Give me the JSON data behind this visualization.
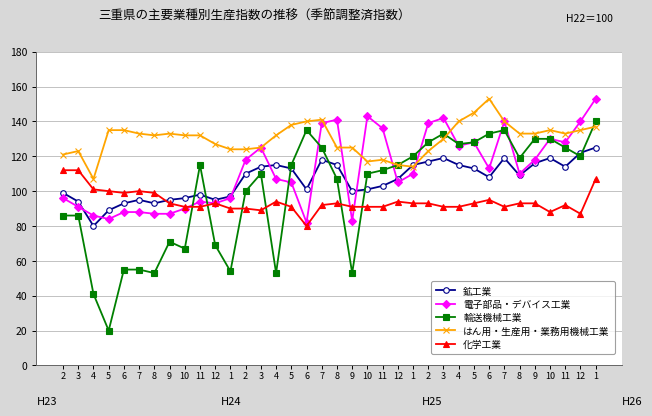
{
  "title": "三重県の主要業種別生産指数の推移（季節調整済指数）",
  "subtitle": "H22＝100",
  "xlabels": [
    "2",
    "3",
    "4",
    "5",
    "6",
    "7",
    "8",
    "9",
    "10",
    "11",
    "12",
    "1",
    "2",
    "3",
    "4",
    "5",
    "6",
    "7",
    "8",
    "9",
    "10",
    "11",
    "12",
    "1",
    "2",
    "3",
    "4",
    "5",
    "6",
    "7",
    "8",
    "9",
    "10",
    "11",
    "12",
    "1"
  ],
  "period_labels": [
    [
      "H23",
      0
    ],
    [
      "H24",
      11
    ],
    [
      "H25",
      23
    ],
    [
      "H26",
      35
    ]
  ],
  "ylim": [
    0,
    180
  ],
  "yticks": [
    0,
    20,
    40,
    60,
    80,
    100,
    120,
    140,
    160,
    180
  ],
  "bg_color": "#D8D8D8",
  "plot_bg": "white",
  "series": [
    {
      "name": "鉱工業",
      "color": "#00008B",
      "marker": "o",
      "mfc": "white",
      "mec": "#00008B",
      "ms": 4,
      "lw": 1.3,
      "values": [
        99,
        94,
        80,
        89,
        93,
        95,
        93,
        95,
        96,
        98,
        95,
        97,
        110,
        114,
        115,
        113,
        101,
        118,
        115,
        100,
        101,
        103,
        107,
        115,
        117,
        119,
        115,
        113,
        108,
        119,
        109,
        116,
        119,
        114,
        122,
        125
      ]
    },
    {
      "name": "電子部品・デバイス工業",
      "color": "#FF00FF",
      "marker": "D",
      "mfc": "#FF00FF",
      "mec": "#FF00FF",
      "ms": 4,
      "lw": 1.3,
      "values": [
        96,
        91,
        86,
        84,
        88,
        88,
        87,
        87,
        90,
        94,
        93,
        96,
        118,
        125,
        107,
        105,
        82,
        139,
        141,
        83,
        143,
        136,
        105,
        110,
        139,
        142,
        126,
        128,
        113,
        140,
        110,
        118,
        130,
        128,
        140,
        153
      ]
    },
    {
      "name": "輸送機械工業",
      "color": "#008000",
      "marker": "s",
      "mfc": "#008000",
      "mec": "#008000",
      "ms": 4,
      "lw": 1.3,
      "values": [
        86,
        86,
        41,
        20,
        55,
        55,
        53,
        71,
        67,
        115,
        69,
        54,
        100,
        110,
        53,
        115,
        135,
        125,
        107,
        53,
        110,
        112,
        115,
        120,
        128,
        133,
        127,
        128,
        133,
        135,
        119,
        130,
        130,
        125,
        120,
        140
      ]
    },
    {
      "name": "はん用・生産用・業務用機械工業",
      "color": "#FFA500",
      "marker": "x",
      "mfc": "#FFA500",
      "mec": "#FFA500",
      "ms": 5,
      "lw": 1.3,
      "values": [
        121,
        123,
        107,
        135,
        135,
        133,
        132,
        133,
        132,
        132,
        127,
        124,
        124,
        125,
        132,
        138,
        140,
        141,
        125,
        125,
        117,
        118,
        115,
        114,
        123,
        130,
        140,
        145,
        153,
        140,
        133,
        133,
        135,
        133,
        135,
        137
      ]
    },
    {
      "name": "化学工業",
      "color": "#FF0000",
      "marker": "^",
      "mfc": "#FF0000",
      "mec": "#FF0000",
      "ms": 5,
      "lw": 1.3,
      "values": [
        112,
        112,
        101,
        100,
        99,
        100,
        99,
        93,
        91,
        91,
        93,
        90,
        90,
        89,
        94,
        91,
        80,
        92,
        93,
        91,
        91,
        91,
        94,
        93,
        93,
        91,
        91,
        93,
        95,
        91,
        93,
        93,
        88,
        92,
        87,
        107
      ]
    }
  ]
}
